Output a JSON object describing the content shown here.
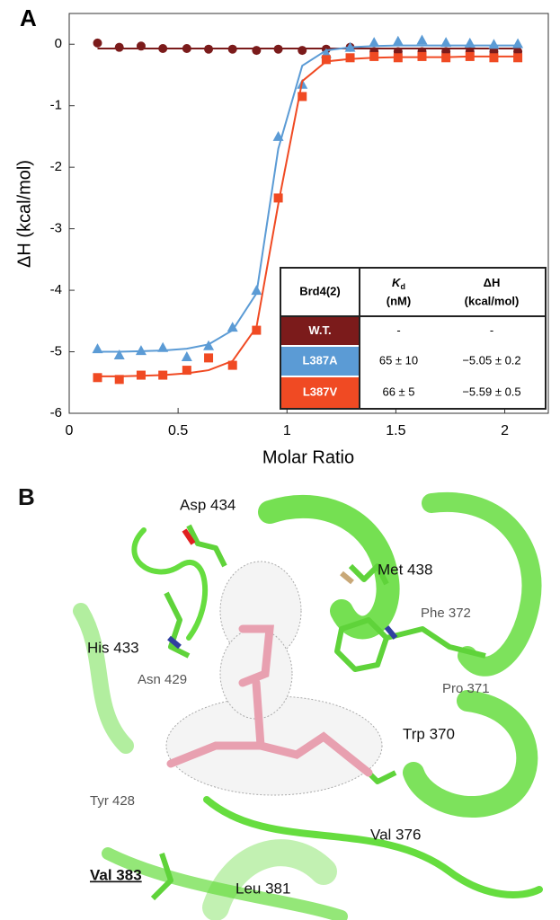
{
  "chart_data": {
    "type": "scatter",
    "panel_label": "A",
    "x_label": "Molar Ratio",
    "y_label": "ΔH (kcal/mol)",
    "xlim": [
      0,
      2.2
    ],
    "xticks": [
      0,
      0.5,
      1,
      1.5,
      2
    ],
    "ylim": [
      -6,
      0.5
    ],
    "yticks": [
      -6,
      -5,
      -4,
      -3,
      -2,
      -1,
      0
    ],
    "grid": false,
    "x": [
      0.13,
      0.23,
      0.33,
      0.43,
      0.54,
      0.64,
      0.75,
      0.86,
      0.96,
      1.07,
      1.18,
      1.29,
      1.4,
      1.51,
      1.62,
      1.73,
      1.84,
      1.95,
      2.06
    ],
    "series": [
      {
        "name": "W.T.",
        "color": "#7b1b1b",
        "marker": "circle",
        "values": [
          0.02,
          -0.05,
          -0.03,
          -0.07,
          -0.07,
          -0.08,
          -0.08,
          -0.1,
          -0.08,
          -0.1,
          -0.08,
          -0.05,
          -0.12,
          -0.12,
          -0.12,
          -0.12,
          -0.12,
          -0.12,
          -0.12
        ],
        "fit": [
          -0.07,
          -0.07,
          -0.07,
          -0.07,
          -0.07,
          -0.07,
          -0.07,
          -0.07,
          -0.07,
          -0.07,
          -0.07,
          -0.07,
          -0.07,
          -0.07,
          -0.07,
          -0.07,
          -0.07,
          -0.07,
          -0.07
        ]
      },
      {
        "name": "L387A",
        "color": "#5b9bd5",
        "marker": "triangle",
        "values": [
          -4.95,
          -5.05,
          -4.98,
          -4.93,
          -5.08,
          -4.9,
          -4.6,
          -4.0,
          -1.5,
          -0.65,
          -0.15,
          -0.05,
          0.03,
          0.05,
          0.07,
          0.03,
          0.02,
          0.0,
          0.01
        ],
        "fit": [
          -5.0,
          -5.0,
          -4.99,
          -4.98,
          -4.95,
          -4.88,
          -4.65,
          -4.05,
          -1.7,
          -0.35,
          -0.1,
          -0.05,
          -0.03,
          -0.02,
          -0.02,
          -0.02,
          -0.02,
          -0.02,
          -0.02
        ]
      },
      {
        "name": "L387V",
        "color": "#f04a23",
        "marker": "square",
        "values": [
          -5.42,
          -5.45,
          -5.38,
          -5.38,
          -5.3,
          -5.1,
          -5.22,
          -4.65,
          -2.5,
          -0.85,
          -0.25,
          -0.22,
          -0.2,
          -0.22,
          -0.2,
          -0.22,
          -0.2,
          -0.22,
          -0.22
        ],
        "fit": [
          -5.4,
          -5.4,
          -5.39,
          -5.38,
          -5.35,
          -5.3,
          -5.15,
          -4.6,
          -2.6,
          -0.6,
          -0.28,
          -0.24,
          -0.22,
          -0.21,
          -0.21,
          -0.21,
          -0.2,
          -0.2,
          -0.2
        ]
      }
    ],
    "table": {
      "header": [
        "Brd4(2)",
        {
          "symbol": "K",
          "subscript": "d",
          "unit": "(nM)"
        },
        {
          "symbol": "ΔH",
          "unit": "(kcal/mol)"
        }
      ],
      "rows": [
        [
          "-",
          "-"
        ],
        [
          "65 ± 10",
          "−5.05 ± 0.2"
        ],
        [
          "66 ± 5",
          "−5.59 ± 0.5"
        ]
      ]
    }
  },
  "structure_panel": {
    "panel_label": "B",
    "residues": [
      "Asp 434",
      "Met 438",
      "Phe 372",
      "His 433",
      "Pro 371",
      "Asn 429",
      "Trp 370",
      "Tyr 428",
      "Val 376",
      "Val 383",
      "Leu 381"
    ]
  }
}
